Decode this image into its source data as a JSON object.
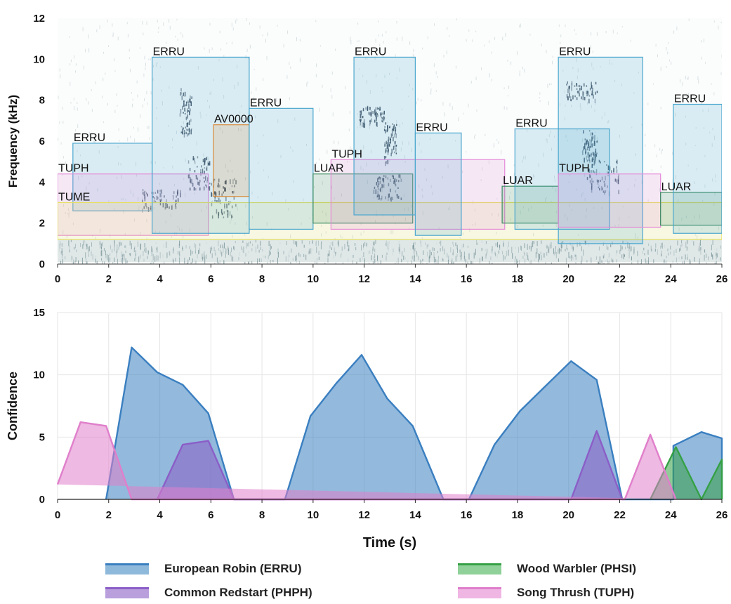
{
  "chart_data": [
    {
      "type": "spectrogram",
      "ylabel": "Frequency (kHz)",
      "xlabel": "",
      "xlim": [
        0,
        26
      ],
      "ylim": [
        0,
        12
      ],
      "xticks": [
        0,
        2,
        4,
        6,
        8,
        10,
        12,
        14,
        16,
        18,
        20,
        22,
        24,
        26
      ],
      "yticks": [
        0,
        2,
        4,
        6,
        8,
        10,
        12
      ],
      "annotations": [
        {
          "label": "ERRU",
          "t0": 0.6,
          "t1": 3.7,
          "f0": 2.6,
          "f1": 5.9,
          "color": "#4aa7cf"
        },
        {
          "label": "TUPH",
          "t0": 0.0,
          "t1": 5.9,
          "f0": 1.4,
          "f1": 4.4,
          "color": "#e58ad8"
        },
        {
          "label": "TUME",
          "t0": 0.0,
          "t1": 26.0,
          "f0": 1.2,
          "f1": 3.0,
          "color": "#e6e05c"
        },
        {
          "label": "ERRU",
          "t0": 3.7,
          "t1": 7.5,
          "f0": 1.5,
          "f1": 10.1,
          "color": "#4aa7cf"
        },
        {
          "label": "AV0000",
          "t0": 6.1,
          "t1": 7.5,
          "f0": 3.3,
          "f1": 6.8,
          "color": "#d98a3a"
        },
        {
          "label": "ERRU",
          "t0": 7.5,
          "t1": 10.0,
          "f0": 1.7,
          "f1": 7.6,
          "color": "#4aa7cf"
        },
        {
          "label": "LUAR",
          "t0": 10.0,
          "t1": 13.9,
          "f0": 2.0,
          "f1": 4.4,
          "color": "#3c8c62"
        },
        {
          "label": "TUPH",
          "t0": 10.7,
          "t1": 17.5,
          "f0": 1.7,
          "f1": 5.1,
          "color": "#e58ad8"
        },
        {
          "label": "ERRU",
          "t0": 11.6,
          "t1": 14.0,
          "f0": 2.4,
          "f1": 10.1,
          "color": "#4aa7cf"
        },
        {
          "label": "ERRU",
          "t0": 14.0,
          "t1": 15.8,
          "f0": 1.4,
          "f1": 6.4,
          "color": "#4aa7cf"
        },
        {
          "label": "LUAR",
          "t0": 17.4,
          "t1": 19.6,
          "f0": 2.0,
          "f1": 3.8,
          "color": "#3c8c62"
        },
        {
          "label": "ERRU",
          "t0": 17.9,
          "t1": 21.6,
          "f0": 1.7,
          "f1": 6.6,
          "color": "#4aa7cf"
        },
        {
          "label": "ERRU",
          "t0": 19.6,
          "t1": 22.9,
          "f0": 1.0,
          "f1": 10.1,
          "color": "#4aa7cf"
        },
        {
          "label": "TUPH",
          "t0": 19.6,
          "t1": 23.6,
          "f0": 1.8,
          "f1": 4.4,
          "color": "#e58ad8"
        },
        {
          "label": "LUAR",
          "t0": 23.6,
          "t1": 26.0,
          "f0": 1.9,
          "f1": 3.5,
          "color": "#3c8c62"
        },
        {
          "label": "ERRU",
          "t0": 24.1,
          "t1": 26.0,
          "f0": 1.5,
          "f1": 7.8,
          "color": "#4aa7cf"
        }
      ]
    },
    {
      "type": "area",
      "title": "",
      "xlabel": "Time (s)",
      "ylabel": "Confidence",
      "xlim": [
        0,
        26
      ],
      "ylim": [
        0,
        15
      ],
      "xticks": [
        0,
        2,
        4,
        6,
        8,
        10,
        12,
        14,
        16,
        18,
        20,
        22,
        24,
        26
      ],
      "yticks": [
        0,
        5,
        10,
        15
      ],
      "grid": true,
      "legend_position": "bottom",
      "series": [
        {
          "name": "European Robin (ERRU)",
          "color": "#3a7fc0",
          "points": [
            [
              1.9,
              0
            ],
            [
              2.9,
              12.2
            ],
            [
              3.9,
              10.2
            ],
            [
              4.9,
              9.2
            ],
            [
              5.9,
              6.9
            ],
            [
              6.9,
              0
            ],
            [
              8.9,
              0
            ],
            [
              9.9,
              6.7
            ],
            [
              10.9,
              9.3
            ],
            [
              11.9,
              11.6
            ],
            [
              12.9,
              8.1
            ],
            [
              13.9,
              5.9
            ],
            [
              15.1,
              0
            ],
            [
              16.1,
              0
            ],
            [
              17.1,
              4.4
            ],
            [
              18.1,
              7.1
            ],
            [
              19.1,
              9.1
            ],
            [
              20.1,
              11.1
            ],
            [
              21.1,
              9.6
            ],
            [
              22.1,
              0
            ],
            [
              24.1,
              0
            ],
            [
              24.1,
              4.3
            ],
            [
              25.2,
              5.4
            ],
            [
              26,
              4.9
            ],
            [
              26,
              0
            ]
          ]
        },
        {
          "name": "Common Redstart (PHPH)",
          "color": "#8b5ec7",
          "points": [
            [
              3.9,
              0
            ],
            [
              4.9,
              4.4
            ],
            [
              5.9,
              4.7
            ],
            [
              6.9,
              0
            ],
            [
              20.1,
              0
            ],
            [
              21.1,
              5.5
            ],
            [
              22.1,
              0
            ]
          ]
        },
        {
          "name": "Wood Warbler (PHSI)",
          "color": "#35a045",
          "points": [
            [
              23.2,
              0
            ],
            [
              24.2,
              4.2
            ],
            [
              25.2,
              0
            ],
            [
              26,
              3.2
            ],
            [
              26,
              0
            ]
          ]
        },
        {
          "name": "Song Thrush (TUPH)",
          "color": "#e07fcb",
          "points": [
            [
              0,
              1.2
            ],
            [
              0.9,
              6.2
            ],
            [
              1.9,
              5.9
            ],
            [
              2.9,
              0
            ],
            [
              22.2,
              0
            ],
            [
              23.2,
              5.2
            ],
            [
              24.2,
              0
            ]
          ]
        }
      ]
    }
  ]
}
